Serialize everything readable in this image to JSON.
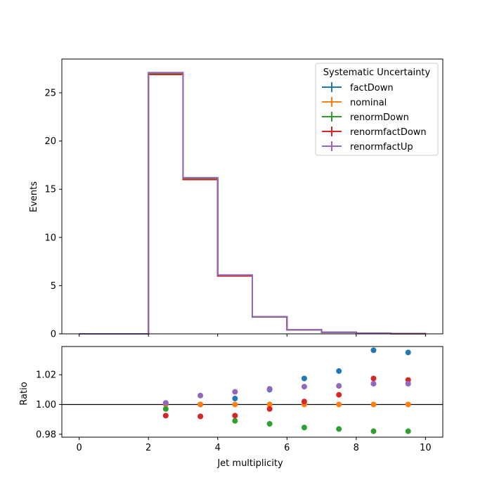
{
  "chart_data": [
    {
      "type": "line",
      "subtype": "step-histogram",
      "xlabel": "",
      "ylabel": "Events",
      "xlim": [
        -0.5,
        10.5
      ],
      "ylim": [
        0,
        28.5
      ],
      "xticks": [
        "0",
        "2",
        "4",
        "6",
        "8",
        "10"
      ],
      "yticks": [
        "0",
        "5",
        "10",
        "15",
        "20",
        "25"
      ],
      "bin_edges": [
        0,
        1,
        2,
        3,
        4,
        5,
        6,
        7,
        8,
        9,
        10
      ],
      "legend": {
        "title": "Systematic Uncertainty",
        "location": "upper right",
        "entries": [
          "factDown",
          "nominal",
          "renormDown",
          "renormfactDown",
          "renormfactUp"
        ]
      },
      "series": [
        {
          "name": "factDown",
          "color": "#1f77b4",
          "values": [
            0,
            0,
            27.05,
            16.1,
            6.05,
            1.78,
            0.43,
            0.16,
            0.06,
            0.02
          ]
        },
        {
          "name": "nominal",
          "color": "#ff7f0e",
          "values": [
            0,
            0,
            27.0,
            16.1,
            6.05,
            1.77,
            0.42,
            0.16,
            0.06,
            0.02
          ]
        },
        {
          "name": "renormDown",
          "color": "#2ca02c",
          "values": [
            0,
            0,
            27.0,
            16.1,
            6.0,
            1.74,
            0.41,
            0.15,
            0.06,
            0.02
          ]
        },
        {
          "name": "renormfactDown",
          "color": "#d62728",
          "values": [
            0,
            0,
            26.9,
            16.0,
            6.0,
            1.77,
            0.42,
            0.16,
            0.06,
            0.02
          ]
        },
        {
          "name": "renormfactUp",
          "color": "#9467bd",
          "values": [
            0,
            0,
            27.1,
            16.2,
            6.1,
            1.79,
            0.43,
            0.16,
            0.06,
            0.02
          ]
        }
      ]
    },
    {
      "type": "scatter",
      "xlabel": "Jet multiplicity",
      "ylabel": "Ratio",
      "xlim": [
        -0.5,
        10.5
      ],
      "ylim": [
        0.978,
        1.039
      ],
      "xticks": [
        "0",
        "2",
        "4",
        "6",
        "8",
        "10"
      ],
      "yticks": [
        "0.98",
        "1.00",
        "1.02"
      ],
      "reference_line": 1.0,
      "x": [
        2.5,
        3.5,
        4.5,
        5.5,
        6.5,
        7.5,
        8.5,
        9.5
      ],
      "series": [
        {
          "name": "factDown",
          "color": "#1f77b4",
          "values": [
            1.001,
            1.0,
            1.004,
            1.01,
            1.0175,
            1.0225,
            1.0365,
            1.035
          ]
        },
        {
          "name": "nominal",
          "color": "#ff7f0e",
          "values": [
            1.0,
            1.0,
            1.0,
            1.0,
            1.0,
            1.0,
            1.0,
            1.0
          ]
        },
        {
          "name": "renormDown",
          "color": "#2ca02c",
          "values": [
            0.997,
            0.992,
            0.989,
            0.987,
            0.9845,
            0.9835,
            0.982,
            0.982
          ]
        },
        {
          "name": "renormfactDown",
          "color": "#d62728",
          "values": [
            0.9925,
            0.992,
            0.9925,
            0.997,
            1.002,
            1.0065,
            1.0175,
            1.0165
          ]
        },
        {
          "name": "renormfactUp",
          "color": "#9467bd",
          "values": [
            1.001,
            1.006,
            1.0085,
            1.0105,
            1.012,
            1.0125,
            1.014,
            1.014
          ]
        }
      ]
    }
  ]
}
